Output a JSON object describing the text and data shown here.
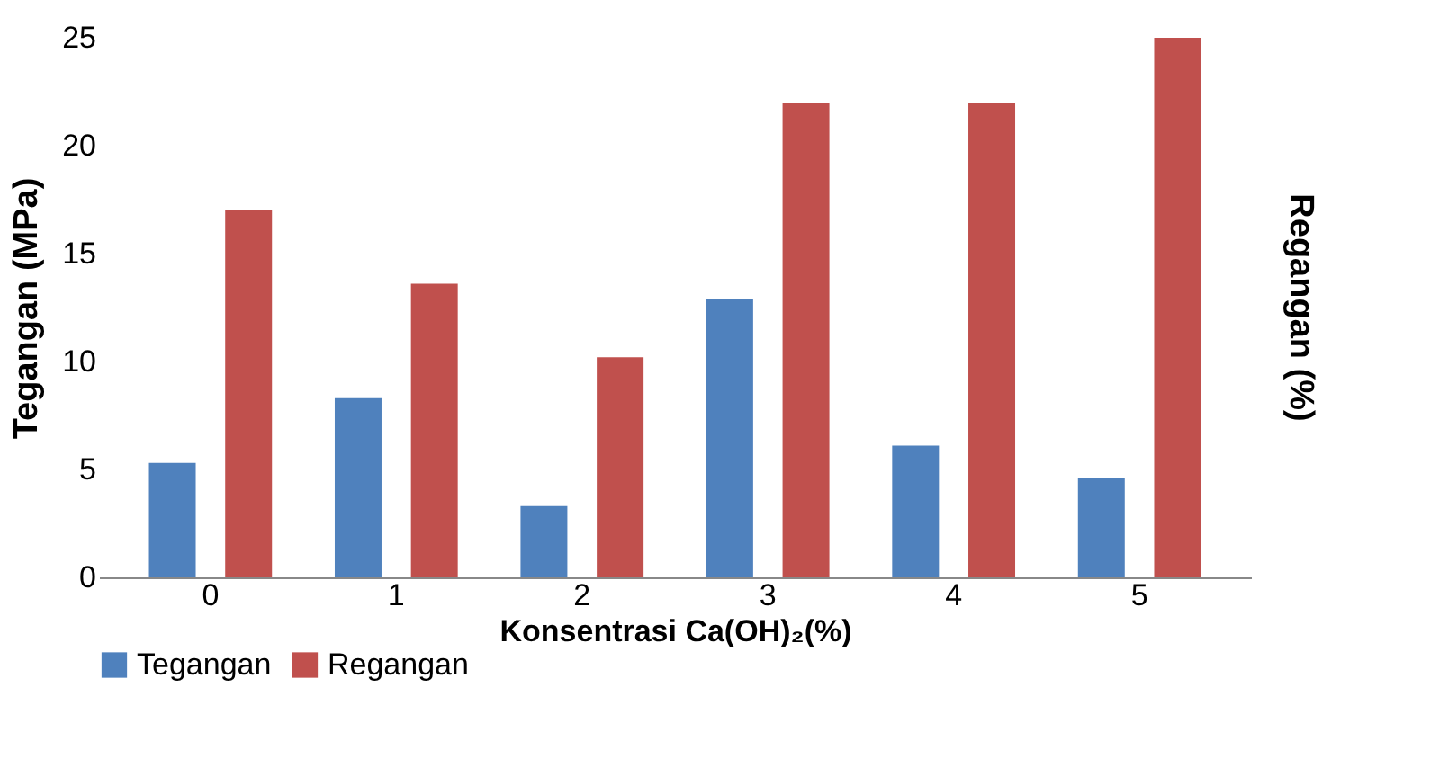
{
  "chart_data": {
    "type": "bar",
    "xlabel": "Konsentrasi Ca(OH)₂(%)",
    "ylabel": "Tegangan (MPa)",
    "y2label": "Regangan (%)",
    "categories": [
      "0",
      "1",
      "2",
      "3",
      "4",
      "5"
    ],
    "series": [
      {
        "name": "Tegangan",
        "color": "#4f81bd",
        "values": [
          5.3,
          8.3,
          3.3,
          12.9,
          6.1,
          4.6
        ]
      },
      {
        "name": "Regangan",
        "color": "#c0504d",
        "values": [
          17,
          13.6,
          10.2,
          22,
          22,
          25
        ]
      }
    ],
    "ylim": [
      0,
      25
    ],
    "yticks": [
      0,
      5,
      10,
      15,
      20,
      25
    ],
    "grid": false,
    "legend": "bottom"
  }
}
